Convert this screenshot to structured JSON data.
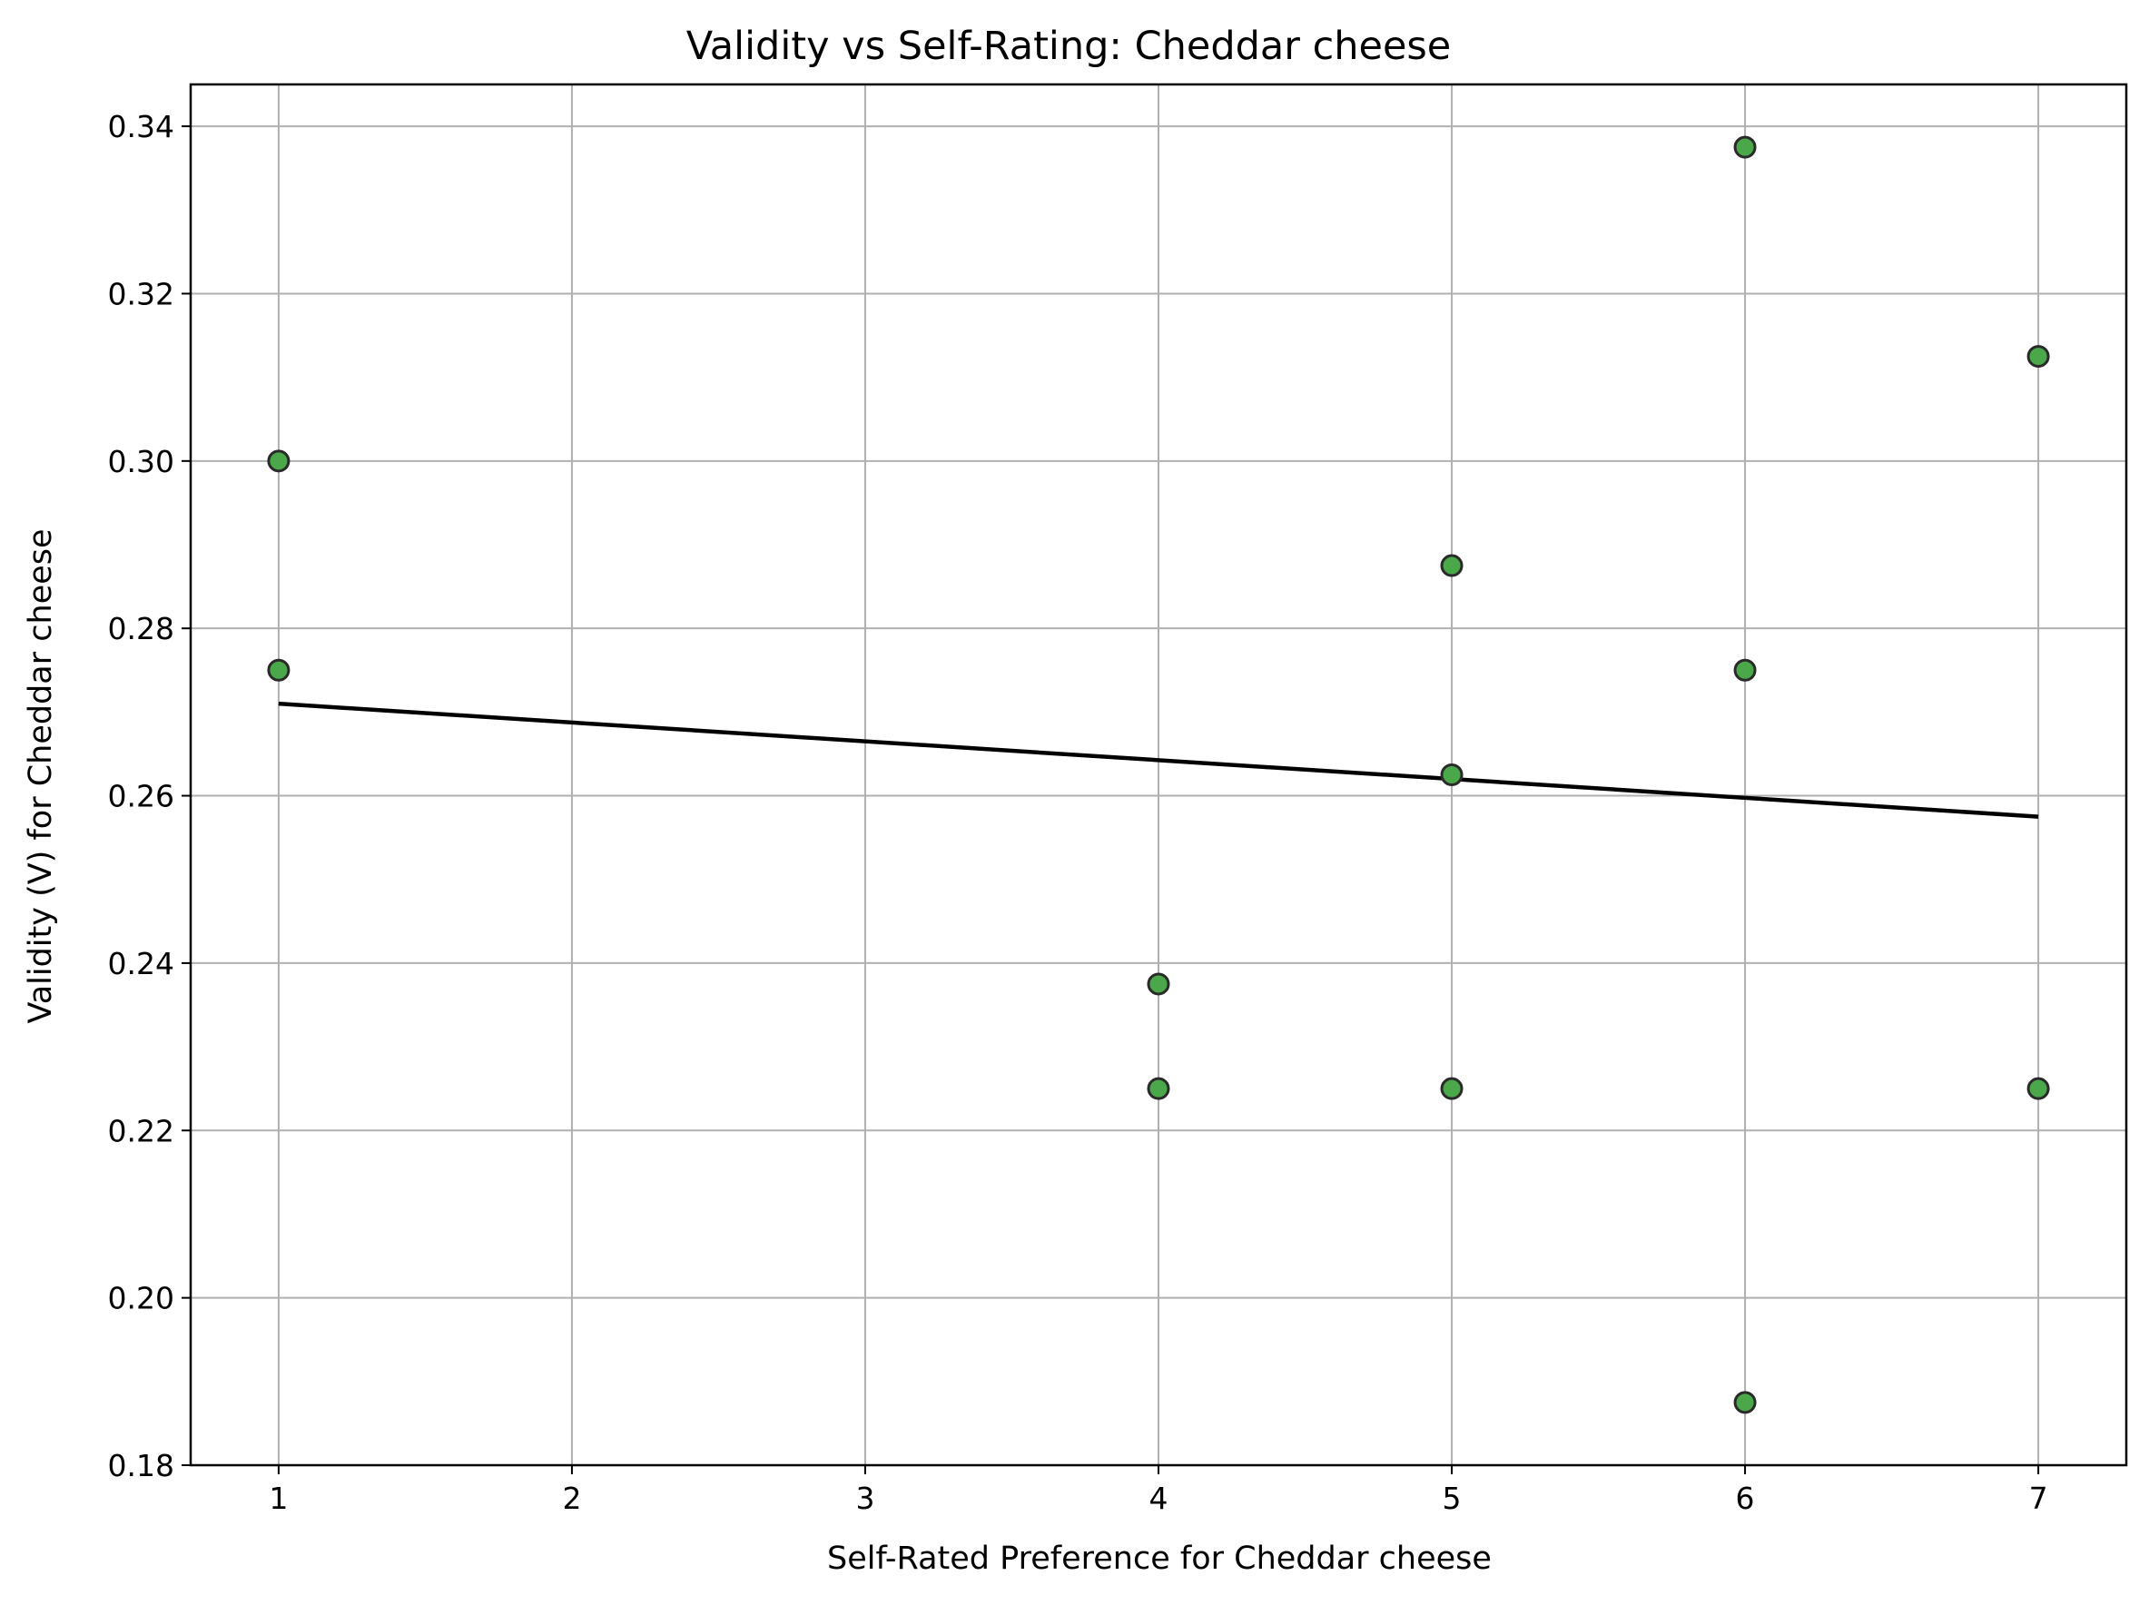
{
  "chart_data": {
    "type": "scatter",
    "title": "Validity vs Self-Rating: Cheddar cheese",
    "xlabel": "Self-Rated Preference for Cheddar cheese",
    "ylabel": "Validity (V) for Cheddar cheese",
    "xlim": [
      0.7,
      7.3
    ],
    "ylim": [
      0.18,
      0.345
    ],
    "x_ticks": [
      "1",
      "2",
      "3",
      "4",
      "5",
      "6",
      "7"
    ],
    "y_ticks": [
      "0.18",
      "0.20",
      "0.22",
      "0.24",
      "0.26",
      "0.28",
      "0.30",
      "0.32",
      "0.34"
    ],
    "grid": true,
    "points": [
      {
        "x": 1,
        "y": 0.3
      },
      {
        "x": 1,
        "y": 0.275
      },
      {
        "x": 4,
        "y": 0.2375
      },
      {
        "x": 4,
        "y": 0.225
      },
      {
        "x": 5,
        "y": 0.2875
      },
      {
        "x": 5,
        "y": 0.2625
      },
      {
        "x": 5,
        "y": 0.225
      },
      {
        "x": 6,
        "y": 0.3375
      },
      {
        "x": 6,
        "y": 0.275
      },
      {
        "x": 6,
        "y": 0.1875
      },
      {
        "x": 7,
        "y": 0.3125
      },
      {
        "x": 7,
        "y": 0.225
      }
    ],
    "trendline": {
      "x": [
        1,
        7
      ],
      "y": [
        0.271,
        0.2575
      ]
    },
    "colors": {
      "point_fill": "#4aa84a",
      "point_edge": "#2a2a2a",
      "trendline": "#000000",
      "grid": "#b0b0b0"
    }
  }
}
